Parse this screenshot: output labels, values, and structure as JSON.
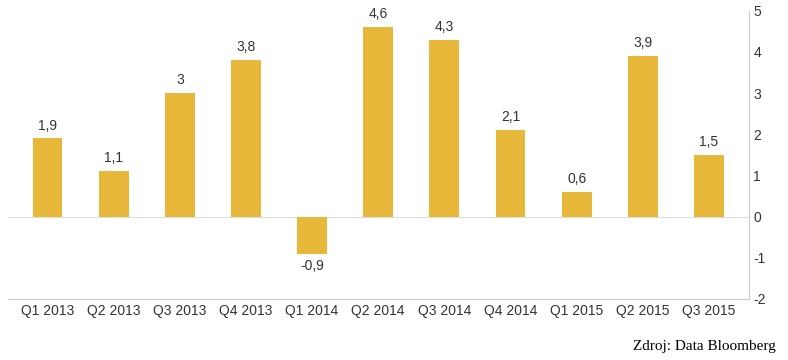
{
  "chart_data": {
    "type": "bar",
    "categories": [
      "Q1 2013",
      "Q2 2013",
      "Q3 2013",
      "Q4 2013",
      "Q1 2014",
      "Q2 2014",
      "Q3 2014",
      "Q4 2014",
      "Q1 2015",
      "Q2 2015",
      "Q3 2015"
    ],
    "values": [
      1.9,
      1.1,
      3,
      3.8,
      -0.9,
      4.6,
      4.3,
      2.1,
      0.6,
      3.9,
      1.5
    ],
    "value_labels": [
      "1,9",
      "1,1",
      "3",
      "3,8",
      "-0,9",
      "4,6",
      "4,3",
      "2,1",
      "0,6",
      "3,9",
      "1,5"
    ],
    "data_labels": true,
    "color": "#e8b83a",
    "ylim": [
      -2,
      5
    ],
    "yticks": [
      -2,
      -1,
      0,
      1,
      2,
      3,
      4,
      5
    ],
    "grid": false,
    "source": "Zdroj: Data Bloomberg"
  }
}
